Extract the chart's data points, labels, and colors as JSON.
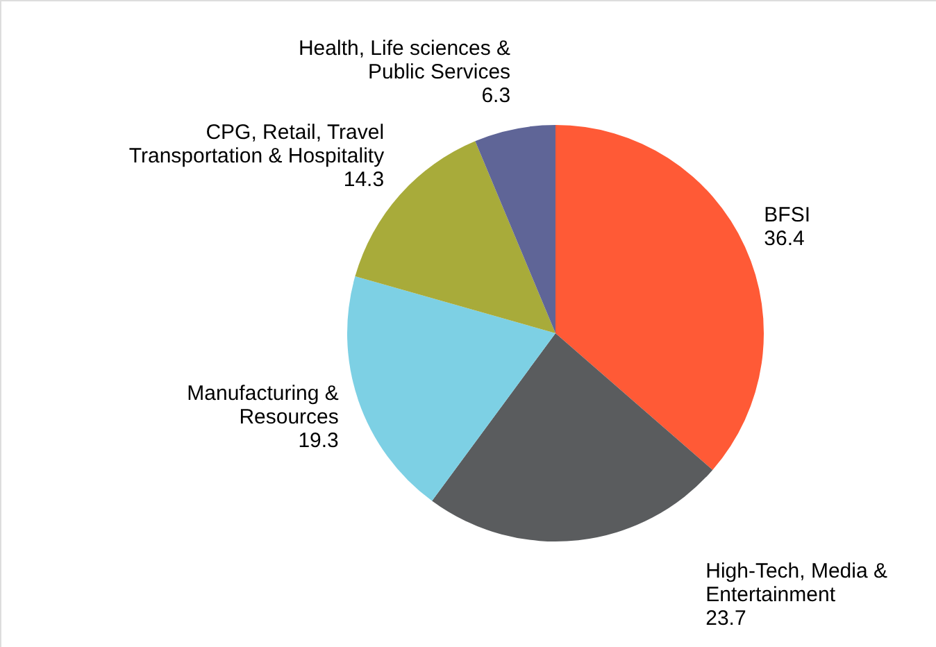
{
  "chart_data": {
    "type": "pie",
    "categories": [
      "BFSI",
      "High-Tech, Media &\nEntertainment",
      "Manufacturing &\nResources",
      "CPG, Retail, Travel\nTransportation & Hospitality",
      "Health, Life sciences &\nPublic Services"
    ],
    "values": [
      36.4,
      23.7,
      19.3,
      14.3,
      6.3
    ],
    "colors": [
      "#ff5a36",
      "#5a5c5e",
      "#7dd0e4",
      "#a8ab3a",
      "#5f6597"
    ],
    "data_labels": true
  }
}
